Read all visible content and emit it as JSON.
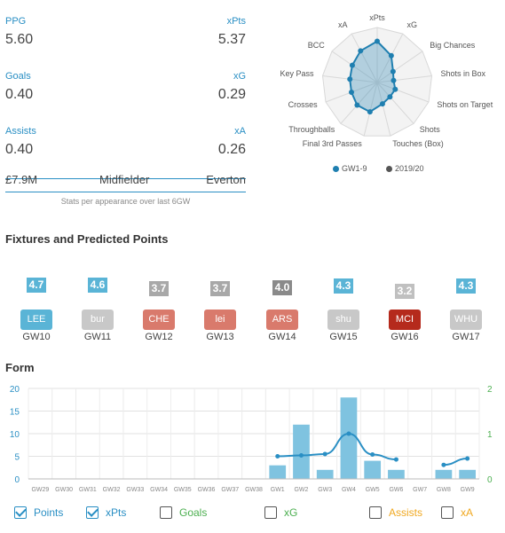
{
  "stats": {
    "ppg_label": "PPG",
    "ppg_value": "5.60",
    "xpts_label": "xPts",
    "xpts_value": "5.37",
    "goals_label": "Goals",
    "goals_value": "0.40",
    "xg_label": "xG",
    "xg_value": "0.29",
    "assists_label": "Assists",
    "assists_value": "0.40",
    "xa_label": "xA",
    "xa_value": "0.26"
  },
  "player": {
    "price": "£7.9M",
    "position": "Midfielder",
    "team": "Everton"
  },
  "note": "Stats per appearance over last 6GW",
  "radar": {
    "axes": [
      "xPts",
      "xG",
      "Big Chances",
      "Shots in Box",
      "Shots on Target",
      "Shots",
      "Touches (Box)",
      "Final 3rd Passes",
      "Throughballs",
      "Crosses",
      "Key Pass",
      "BCC",
      "xA"
    ],
    "series": [
      {
        "name": "GW1-9",
        "color": "#1f7fb0",
        "values": [
          0.75,
          0.55,
          0.35,
          0.3,
          0.35,
          0.35,
          0.4,
          0.55,
          0.55,
          0.5,
          0.5,
          0.55,
          0.65
        ]
      }
    ],
    "legend": [
      {
        "label": "GW1-9",
        "color": "#1f7fb0"
      },
      {
        "label": "2019/20",
        "color": "#555555"
      }
    ]
  },
  "fixtures_title": "Fixtures and Predicted Points",
  "fixtures": [
    {
      "pts": "4.7",
      "pts_color": "#5ab4d6",
      "opp": "LEE",
      "opp_color": "#5ab4d6",
      "gw": "GW10"
    },
    {
      "pts": "4.6",
      "pts_color": "#5ab4d6",
      "opp": "bur",
      "opp_color": "#c8c8c8",
      "gw": "GW11"
    },
    {
      "pts": "3.7",
      "pts_color": "#a8a8a8",
      "opp": "CHE",
      "opp_color": "#d97a6c",
      "gw": "GW12"
    },
    {
      "pts": "3.7",
      "pts_color": "#a8a8a8",
      "opp": "lei",
      "opp_color": "#d97a6c",
      "gw": "GW13"
    },
    {
      "pts": "4.0",
      "pts_color": "#8a8a8a",
      "opp": "ARS",
      "opp_color": "#d97a6c",
      "gw": "GW14"
    },
    {
      "pts": "4.3",
      "pts_color": "#5ab4d6",
      "opp": "shu",
      "opp_color": "#c8c8c8",
      "gw": "GW15"
    },
    {
      "pts": "3.2",
      "pts_color": "#c0c0c0",
      "opp": "MCI",
      "opp_color": "#b52a1c",
      "gw": "GW16"
    },
    {
      "pts": "4.3",
      "pts_color": "#5ab4d6",
      "opp": "WHU",
      "opp_color": "#c8c8c8",
      "gw": "GW17"
    }
  ],
  "form_title": "Form",
  "chart_data": {
    "type": "bar",
    "categories": [
      "GW29",
      "GW30",
      "GW31",
      "GW32",
      "GW33",
      "GW34",
      "GW35",
      "GW36",
      "GW37",
      "GW38",
      "GW1",
      "GW2",
      "GW3",
      "GW4",
      "GW5",
      "GW6",
      "GW7",
      "GW8",
      "GW9"
    ],
    "series": [
      {
        "name": "Points",
        "type": "bar",
        "color": "#7fc3e0",
        "values": [
          null,
          null,
          null,
          null,
          null,
          null,
          null,
          null,
          null,
          null,
          3,
          12,
          2,
          18,
          4,
          2,
          null,
          2,
          2
        ]
      },
      {
        "name": "xPts",
        "type": "line",
        "color": "#2a8fc4",
        "values": [
          null,
          null,
          null,
          null,
          null,
          null,
          null,
          null,
          null,
          null,
          5,
          5.2,
          5.5,
          10,
          5.4,
          4.3,
          null,
          3.1,
          4.5
        ]
      }
    ],
    "left_axis": {
      "ticks": [
        "0",
        "5",
        "10",
        "15",
        "20"
      ],
      "ylim": [
        0,
        20
      ]
    },
    "right_axis": {
      "ticks": [
        "0",
        "1",
        "2"
      ],
      "ylim": [
        0,
        2
      ]
    },
    "grid": true
  },
  "toggles": [
    {
      "label": "Points",
      "checked": true,
      "color": "#2a8fc4"
    },
    {
      "label": "xPts",
      "checked": true,
      "color": "#2a8fc4"
    },
    {
      "label": "Goals",
      "checked": false,
      "color": "#4caf50"
    },
    {
      "label": "xG",
      "checked": false,
      "color": "#4caf50"
    },
    {
      "label": "Assists",
      "checked": false,
      "color": "#f0a820"
    },
    {
      "label": "xA",
      "checked": false,
      "color": "#f0a820"
    }
  ]
}
